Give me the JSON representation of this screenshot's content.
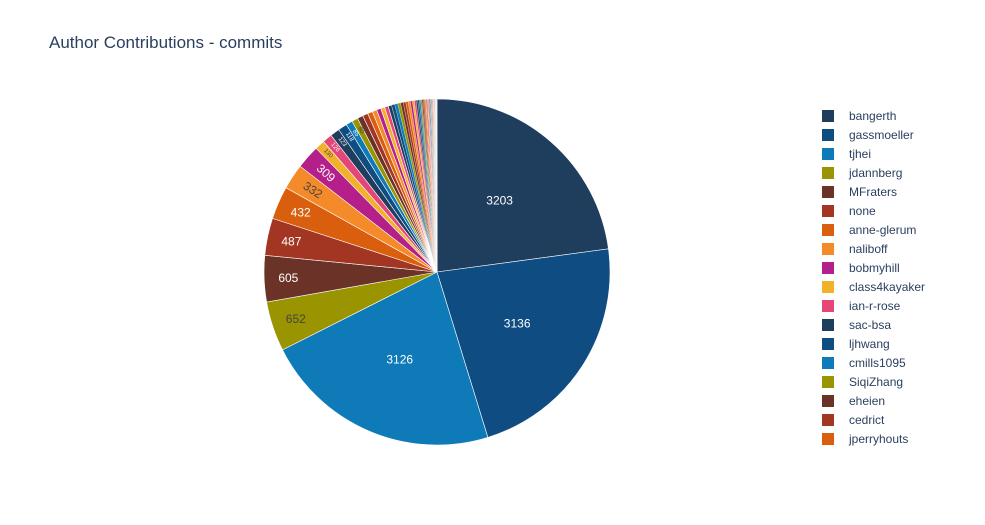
{
  "chart_data": {
    "type": "pie",
    "title": "Author Contributions - commits",
    "slices": [
      {
        "label": "bangerth",
        "value": 3203,
        "color": "#1f3d5c",
        "text": "3203"
      },
      {
        "label": "gassmoeller",
        "value": 3136,
        "color": "#0f4c81",
        "text": "3136"
      },
      {
        "label": "tjhei",
        "value": 3126,
        "color": "#0e7ab8",
        "text": "3126"
      },
      {
        "label": "jdannberg",
        "value": 652,
        "color": "#9a9400",
        "text": "652"
      },
      {
        "label": "MFraters",
        "value": 605,
        "color": "#6b3328",
        "text": "605"
      },
      {
        "label": "none",
        "value": 487,
        "color": "#a33623",
        "text": "487"
      },
      {
        "label": "anne-glerum",
        "value": 432,
        "color": "#d95f0e",
        "text": "432"
      },
      {
        "label": "naliboff",
        "value": 332,
        "color": "#f58a2a",
        "text": "332"
      },
      {
        "label": "bobmyhill",
        "value": 309,
        "color": "#b51f8a",
        "text": "309"
      },
      {
        "label": "class4kayaker",
        "value": 130,
        "color": "#f2b12b",
        "text": "130"
      },
      {
        "label": "ian-r-rose",
        "value": 126,
        "color": "#e5467a",
        "text": "126"
      },
      {
        "label": "sac-bsa",
        "value": 123,
        "color": "#1f3d5c",
        "text": "123"
      },
      {
        "label": "ljhwang",
        "value": 118,
        "color": "#0f4c81",
        "text": "118"
      },
      {
        "label": "cmills1095",
        "value": 85,
        "color": "#0e7ab8",
        "text": "85"
      },
      {
        "label": "SiqiZhang",
        "value": 80,
        "color": "#9a9400",
        "text": "80"
      },
      {
        "label": "eheien",
        "value": 75,
        "color": "#6b3328",
        "text": ""
      },
      {
        "label": "cedrict",
        "value": 70,
        "color": "#a33623",
        "text": ""
      },
      {
        "label": "jperryhouts",
        "value": 65,
        "color": "#d95f0e",
        "text": ""
      }
    ],
    "tail_values": [
      60,
      56,
      52,
      48,
      45,
      42,
      40,
      37,
      35,
      33,
      31,
      29,
      27,
      25,
      23,
      21,
      20,
      18,
      17,
      16,
      15,
      14,
      13,
      12,
      11,
      10,
      9,
      8,
      8,
      7,
      7,
      6,
      6,
      5,
      5,
      4,
      4,
      4,
      3,
      3,
      3,
      2,
      2,
      2,
      2,
      2,
      1,
      1,
      1,
      1,
      1,
      1,
      1,
      1,
      1,
      1,
      1,
      1
    ],
    "palette": [
      "#1f3d5c",
      "#0f4c81",
      "#0e7ab8",
      "#9a9400",
      "#6b3328",
      "#a33623",
      "#d95f0e",
      "#f58a2a",
      "#b51f8a",
      "#f2b12b",
      "#e5467a"
    ],
    "direction": "clockwise",
    "legend_position": "right"
  }
}
